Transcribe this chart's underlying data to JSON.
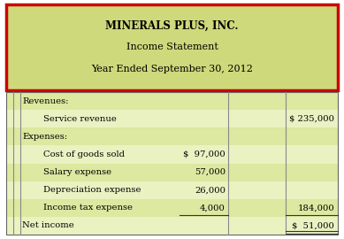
{
  "title_line1": "MINERALS PLUS, INC.",
  "title_line2": "Income Statement",
  "title_line3": "Year Ended September 30, 2012",
  "header_bg": "#cdd97a",
  "header_border": "#cc0000",
  "row_bg_even": "#dde8a0",
  "row_bg_odd": "#eaf2c2",
  "rows": [
    {
      "label": "Revenues:",
      "indent": 0,
      "col1": "",
      "col2": ""
    },
    {
      "label": "Service revenue",
      "indent": 2,
      "col1": "",
      "col2": "$ 235,000"
    },
    {
      "label": "Expenses:",
      "indent": 0,
      "col1": "",
      "col2": ""
    },
    {
      "label": "Cost of goods sold",
      "indent": 2,
      "col1": "$  97,000",
      "col2": ""
    },
    {
      "label": "Salary expense",
      "indent": 2,
      "col1": "57,000",
      "col2": ""
    },
    {
      "label": "Depreciation expense",
      "indent": 2,
      "col1": "26,000",
      "col2": ""
    },
    {
      "label": "Income tax expense",
      "indent": 2,
      "col1": "4,000",
      "col2": "184,000",
      "col1_underline": true,
      "col2_underline": true
    },
    {
      "label": "Net income",
      "indent": 0,
      "col1": "",
      "col2": "$  51,000",
      "col2_double_underline": true
    }
  ],
  "figw": 3.89,
  "figh": 2.7,
  "dpi": 100
}
